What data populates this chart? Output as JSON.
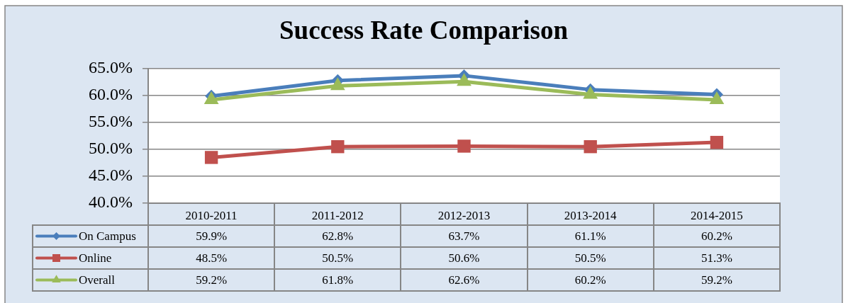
{
  "chart_data": {
    "type": "line",
    "title": "Success Rate Comparison",
    "categories": [
      "2010-2011",
      "2011-2012",
      "2012-2013",
      "2013-2014",
      "2014-2015"
    ],
    "series": [
      {
        "name": "On Campus",
        "color": "#4a7ebb",
        "marker": "diamond",
        "values": [
          59.9,
          62.8,
          63.7,
          61.1,
          60.2
        ],
        "value_labels": [
          "59.9%",
          "62.8%",
          "63.7%",
          "61.1%",
          "60.2%"
        ]
      },
      {
        "name": "Online",
        "color": "#c0504d",
        "marker": "square",
        "values": [
          48.5,
          50.5,
          50.6,
          50.5,
          51.3
        ],
        "value_labels": [
          "48.5%",
          "50.5%",
          "50.6%",
          "50.5%",
          "51.3%"
        ]
      },
      {
        "name": "Overall",
        "color": "#9bbb59",
        "marker": "triangle",
        "values": [
          59.2,
          61.8,
          62.6,
          60.2,
          59.2
        ],
        "value_labels": [
          "59.2%",
          "61.8%",
          "62.6%",
          "60.2%",
          "59.2%"
        ]
      }
    ],
    "ylim": [
      40,
      65
    ],
    "yticks": [
      {
        "value": 40,
        "label": "40.0%"
      },
      {
        "value": 45,
        "label": "45.0%"
      },
      {
        "value": 50,
        "label": "50.0%"
      },
      {
        "value": 55,
        "label": "55.0%"
      },
      {
        "value": 60,
        "label": "60.0%"
      },
      {
        "value": 65,
        "label": "65.0%"
      }
    ],
    "grid": "y",
    "legend": "bottom"
  }
}
